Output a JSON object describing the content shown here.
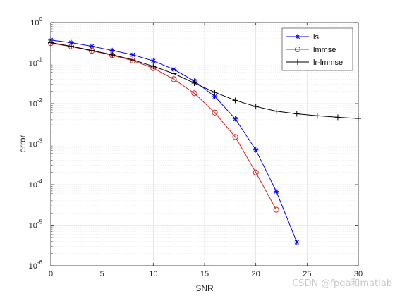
{
  "chart_data": {
    "type": "line",
    "xlabel": "SNR",
    "ylabel": "error",
    "xlim": [
      0,
      30
    ],
    "ylim_exp": [
      -6,
      0
    ],
    "y_scale": "log",
    "grid": true,
    "legend_position": "top-right",
    "x_ticks": [
      "0",
      "5",
      "10",
      "15",
      "20",
      "25",
      "30"
    ],
    "y_tick_base": "10",
    "y_tick_exponents": [
      "0",
      "-1",
      "-2",
      "-3",
      "-4",
      "-5",
      "-6"
    ],
    "series": [
      {
        "name": "ls",
        "color": "#0000ff",
        "marker": "asterisk",
        "x": [
          0,
          2,
          4,
          6,
          8,
          10,
          12,
          14,
          16,
          18,
          20,
          22,
          24
        ],
        "y": [
          0.37,
          0.32,
          0.26,
          0.205,
          0.16,
          0.113,
          0.07,
          0.036,
          0.015,
          0.0042,
          0.00072,
          6.8e-05,
          3.8e-06
        ]
      },
      {
        "name": "lmmse",
        "color": "#e02020",
        "marker": "circle",
        "x": [
          0,
          2,
          4,
          6,
          8,
          10,
          12,
          14,
          16,
          18,
          20,
          22
        ],
        "y": [
          0.31,
          0.255,
          0.2,
          0.155,
          0.115,
          0.075,
          0.04,
          0.018,
          0.006,
          0.0015,
          0.0002,
          2.4e-05
        ]
      },
      {
        "name": "lr-lmmse",
        "color": "#000000",
        "marker": "plus",
        "x": [
          0,
          2,
          4,
          6,
          8,
          10,
          12,
          14,
          16,
          18,
          20,
          22,
          24,
          26,
          28,
          30
        ],
        "y": [
          0.32,
          0.26,
          0.205,
          0.16,
          0.12,
          0.083,
          0.055,
          0.032,
          0.019,
          0.012,
          0.0085,
          0.0065,
          0.0056,
          0.005,
          0.0046,
          0.0043
        ]
      }
    ]
  },
  "watermark": "CSDN @fpga和matlab"
}
